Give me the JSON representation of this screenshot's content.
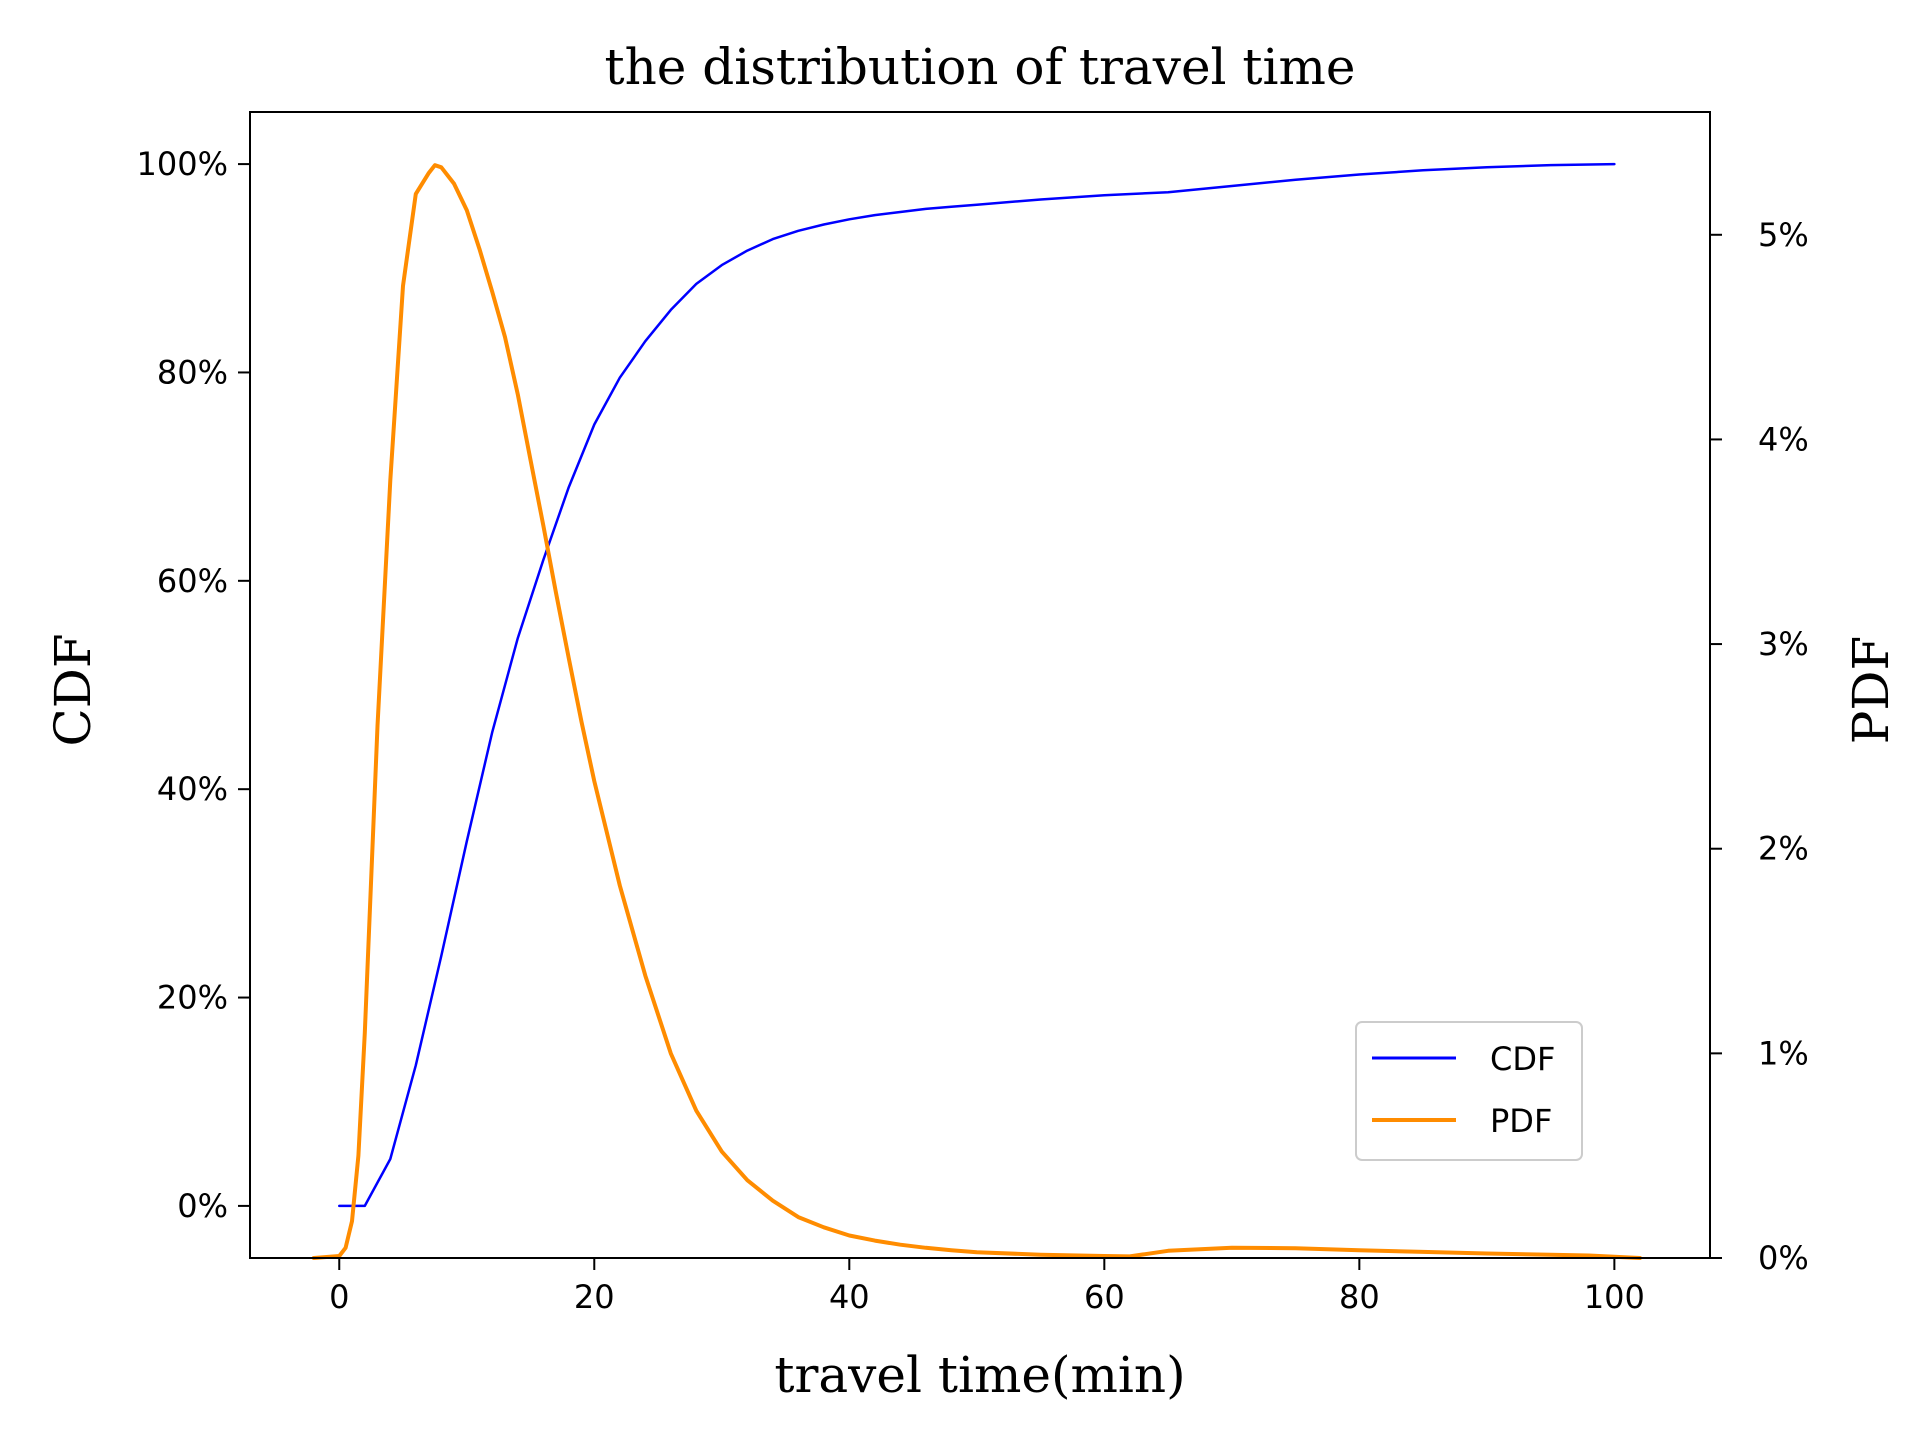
{
  "chart_data": {
    "type": "line",
    "title": "the distribution of travel time",
    "xlabel": "travel time(min)",
    "ylabel_left": "CDF",
    "ylabel_right": "PDF",
    "xlim": [
      -7,
      107.5
    ],
    "ylim_left": [
      -5,
      105
    ],
    "ylim_right": [
      0,
      5.6
    ],
    "x_ticks": [
      0,
      20,
      40,
      60,
      80,
      100
    ],
    "x_tick_labels": [
      "0",
      "20",
      "40",
      "60",
      "80",
      "100"
    ],
    "y_left_ticks": [
      0,
      20,
      40,
      60,
      80,
      100
    ],
    "y_left_tick_labels": [
      "0%",
      "20%",
      "40%",
      "60%",
      "80%",
      "100%"
    ],
    "y_right_ticks": [
      0,
      1,
      2,
      3,
      4,
      5
    ],
    "y_right_tick_labels": [
      "0%",
      "1%",
      "2%",
      "3%",
      "4%",
      "5%"
    ],
    "grid": false,
    "legend_position": "lower-right",
    "series": [
      {
        "name": "CDF",
        "axis": "left",
        "color": "#0000ff",
        "x": [
          0,
          2,
          4,
          6,
          8,
          10,
          12,
          14,
          16,
          18,
          20,
          22,
          24,
          26,
          28,
          30,
          32,
          34,
          36,
          38,
          40,
          42,
          44,
          46,
          48,
          50,
          55,
          60,
          65,
          70,
          75,
          80,
          85,
          90,
          95,
          100
        ],
        "y": [
          0,
          0,
          4.5,
          13.5,
          24,
          35,
          45.5,
          54.5,
          62,
          69,
          75,
          79.5,
          83,
          86,
          88.5,
          90.3,
          91.7,
          92.8,
          93.6,
          94.2,
          94.7,
          95.1,
          95.4,
          95.7,
          95.9,
          96.1,
          96.6,
          97.0,
          97.3,
          97.9,
          98.5,
          99.0,
          99.4,
          99.7,
          99.9,
          100
        ]
      },
      {
        "name": "PDF",
        "axis": "right",
        "color": "#ff8c00",
        "x": [
          -2,
          0,
          0.5,
          1,
          1.5,
          2,
          3,
          4,
          5,
          6,
          7,
          7.5,
          8,
          9,
          10,
          11,
          12,
          13,
          14,
          15,
          16,
          17,
          18,
          19,
          20,
          22,
          24,
          26,
          28,
          30,
          32,
          34,
          36,
          38,
          40,
          42,
          44,
          46,
          48,
          50,
          55,
          60,
          62,
          65,
          70,
          75,
          80,
          85,
          90,
          95,
          98,
          100,
          102
        ],
        "y": [
          0,
          0.01,
          0.05,
          0.18,
          0.5,
          1.1,
          2.6,
          3.8,
          4.75,
          5.2,
          5.3,
          5.34,
          5.33,
          5.25,
          5.12,
          4.93,
          4.72,
          4.5,
          4.22,
          3.9,
          3.58,
          3.25,
          2.93,
          2.62,
          2.33,
          1.82,
          1.38,
          1.0,
          0.72,
          0.52,
          0.38,
          0.28,
          0.2,
          0.15,
          0.11,
          0.085,
          0.065,
          0.05,
          0.038,
          0.028,
          0.016,
          0.01,
          0.008,
          0.035,
          0.05,
          0.048,
          0.038,
          0.03,
          0.022,
          0.016,
          0.012,
          0.006,
          0.0
        ]
      }
    ]
  }
}
